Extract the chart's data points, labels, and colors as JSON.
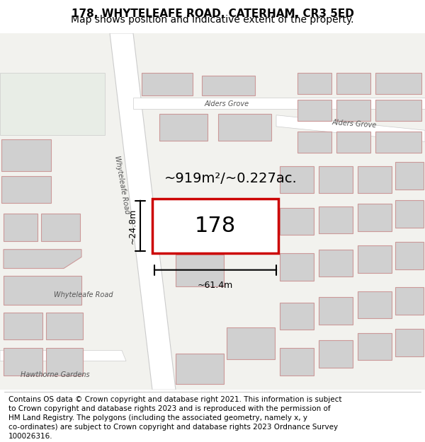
{
  "title": "178, WHYTELEAFE ROAD, CATERHAM, CR3 5ED",
  "subtitle": "Map shows position and indicative extent of the property.",
  "footer_lines": [
    "Contains OS data © Crown copyright and database right 2021. This information is subject",
    "to Crown copyright and database rights 2023 and is reproduced with the permission of",
    "HM Land Registry. The polygons (including the associated geometry, namely x, y",
    "co-ordinates) are subject to Crown copyright and database rights 2023 Ordnance Survey",
    "100026316."
  ],
  "map_bg": "#f2f2ee",
  "area_text": "~919m²/~0.227ac.",
  "label_text": "178",
  "dim_width": "~61.4m",
  "dim_height": "~24.8m",
  "title_fontsize": 11,
  "subtitle_fontsize": 10,
  "footer_fontsize": 7.5
}
